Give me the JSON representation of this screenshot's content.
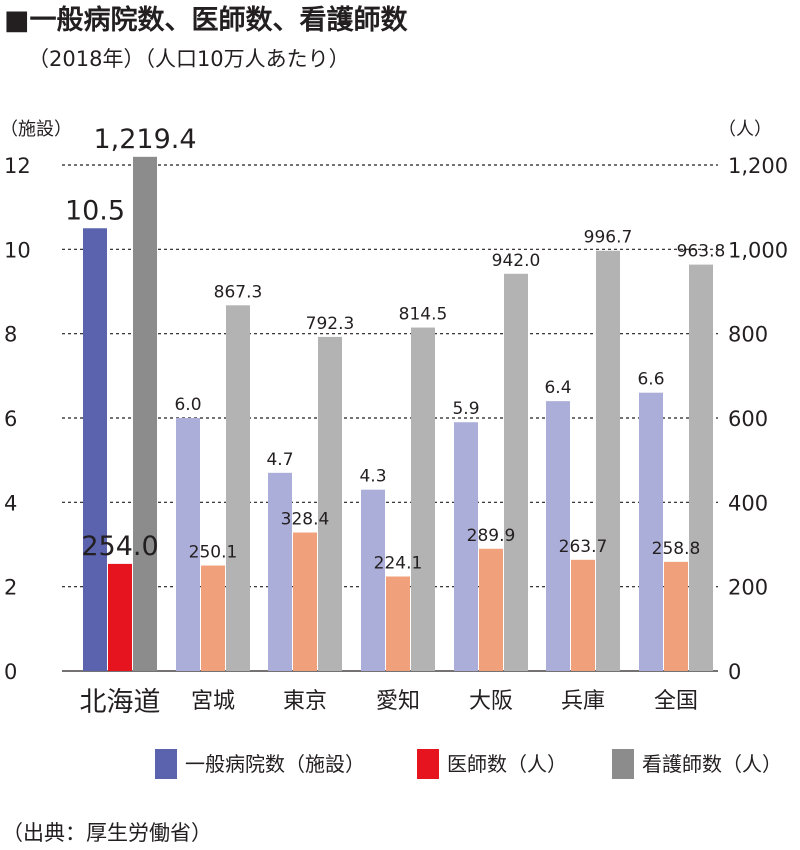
{
  "header": {
    "title": "■一般病院数、医師数、看護師数",
    "subtitle": "（2018年）（人口10万人あたり）"
  },
  "chart_data": {
    "type": "bar",
    "categories": [
      "北海道",
      "宮城",
      "東京",
      "愛知",
      "大阪",
      "兵庫",
      "全国"
    ],
    "series": [
      {
        "name": "一般病院数（施設）",
        "axis": "left",
        "values": [
          10.5,
          6.0,
          4.7,
          4.3,
          5.9,
          6.4,
          6.6
        ],
        "labels": [
          "10.5",
          "6.0",
          "4.7",
          "4.3",
          "5.9",
          "6.4",
          "6.6"
        ]
      },
      {
        "name": "医師数（人）",
        "axis": "right",
        "values": [
          254.0,
          250.1,
          328.4,
          224.1,
          289.9,
          263.7,
          258.8
        ],
        "labels": [
          "254.0",
          "250.1",
          "328.4",
          "224.1",
          "289.9",
          "263.7",
          "258.8"
        ]
      },
      {
        "name": "看護師数（人）",
        "axis": "right",
        "values": [
          1219.4,
          867.3,
          792.3,
          814.5,
          942.0,
          996.7,
          963.8
        ],
        "labels": [
          "1,219.4",
          "867.3",
          "792.3",
          "814.5",
          "942.0",
          "996.7",
          "963.8"
        ]
      }
    ],
    "highlight_category": "北海道",
    "colors": {
      "highlight": [
        "#5b63ae",
        "#e5141f",
        "#8c8c8c"
      ],
      "normal": [
        "#abaed8",
        "#f0a07b",
        "#b3b3b3"
      ]
    },
    "y_left": {
      "unit": "（施設）",
      "ylim": [
        0,
        12
      ],
      "ticks": [
        "0",
        "2",
        "4",
        "6",
        "8",
        "10",
        "12"
      ]
    },
    "y_right": {
      "unit": "（人）",
      "ylim": [
        0,
        1200
      ],
      "ticks": [
        "0",
        "200",
        "400",
        "600",
        "800",
        "1,000",
        "1,200"
      ]
    },
    "grid": true,
    "legend": "bottom",
    "source": "（出典：厚生労働省）"
  }
}
